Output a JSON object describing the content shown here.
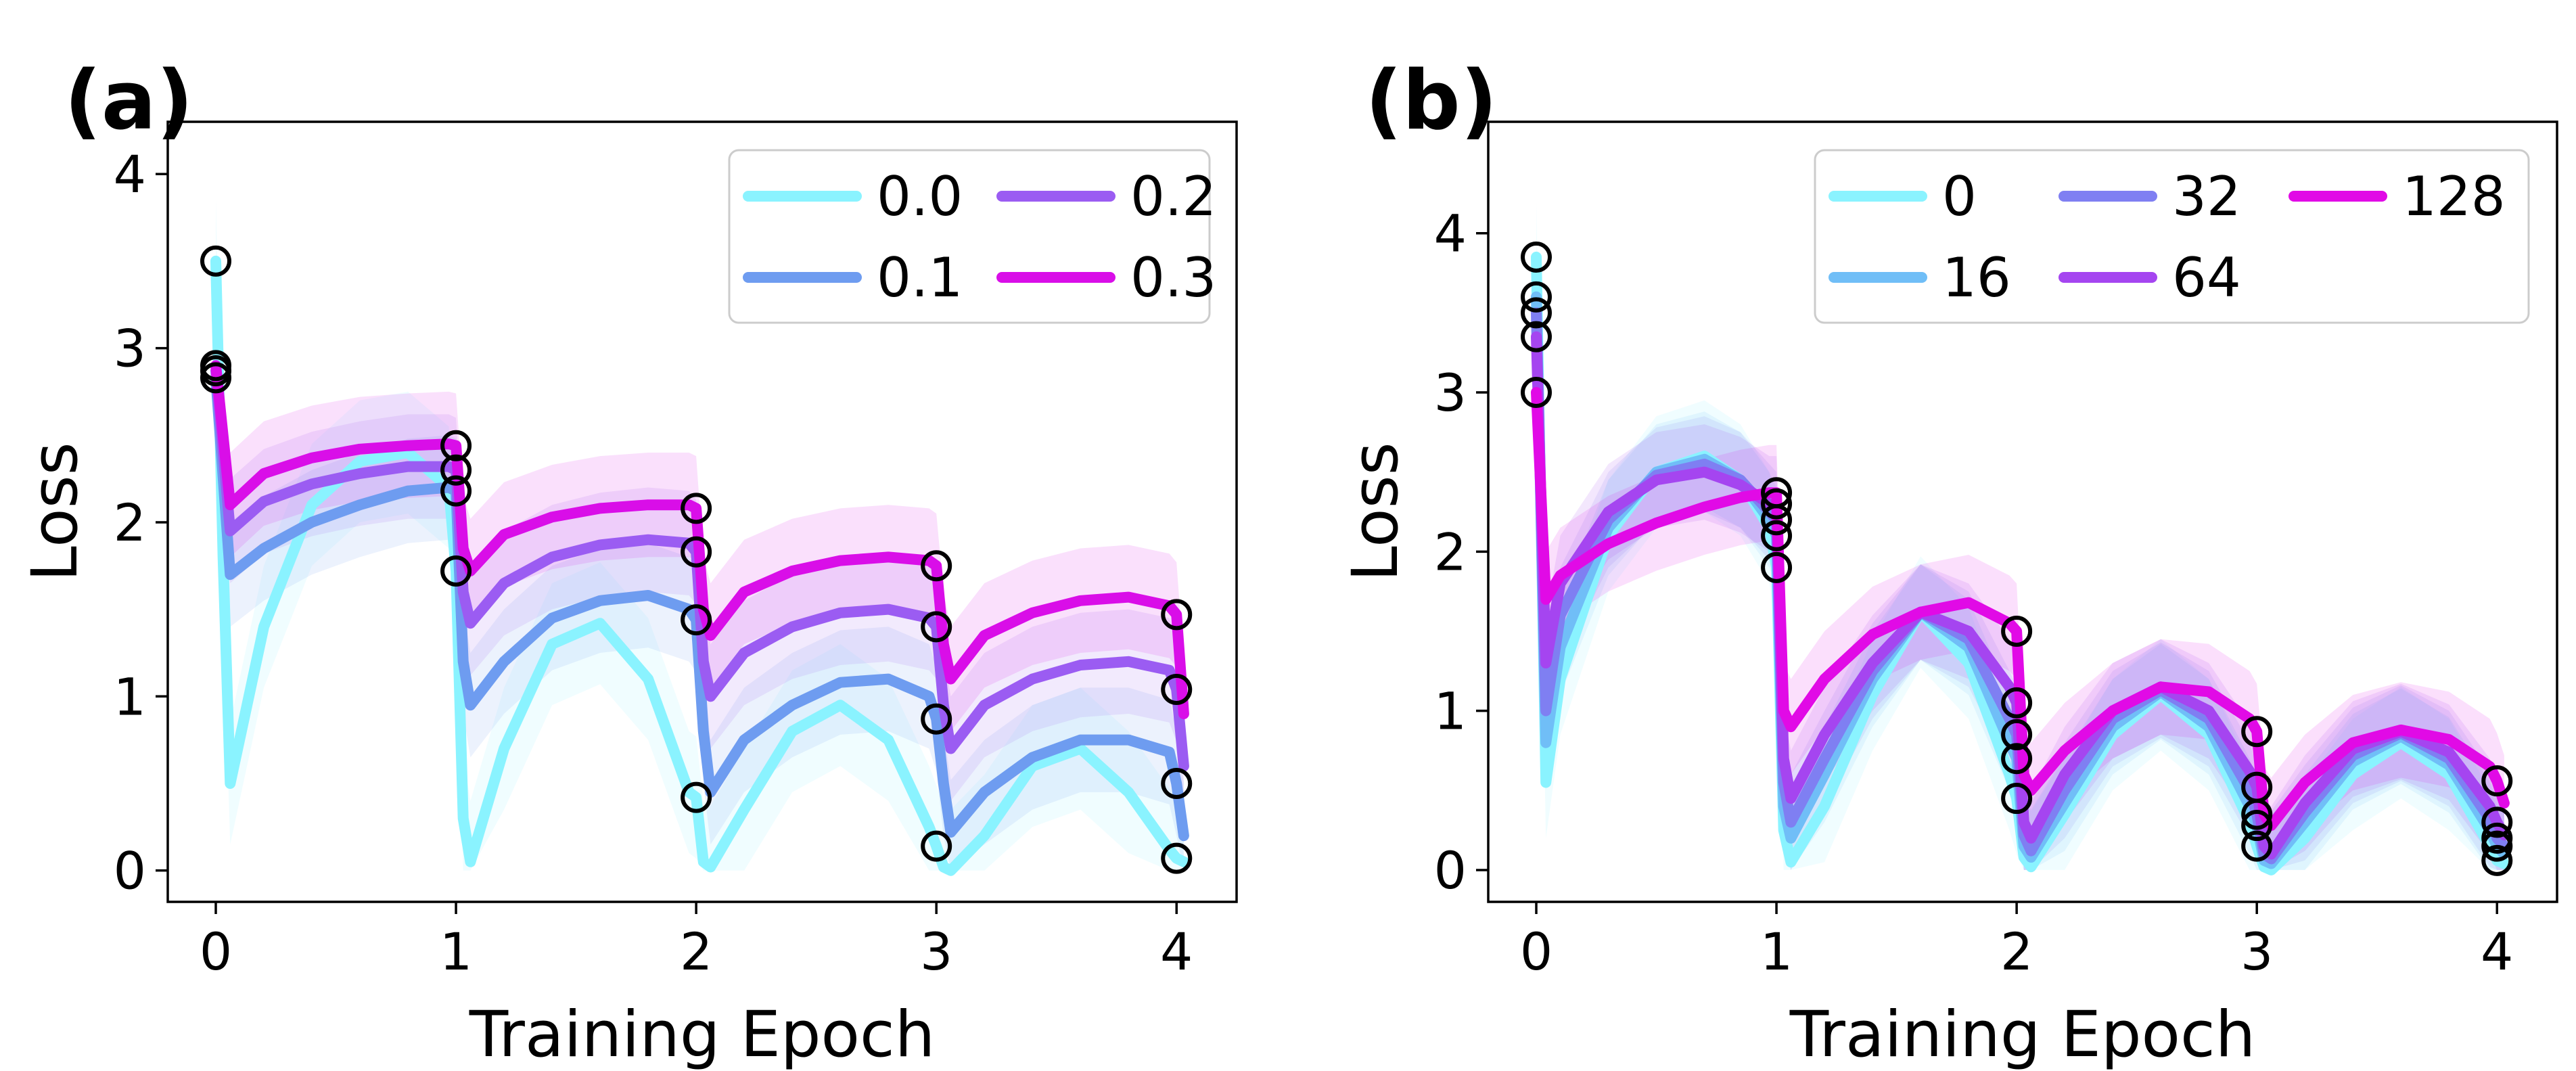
{
  "chart_data": [
    {
      "type": "line",
      "panel_label": "(a)",
      "xlabel": "Training Epoch",
      "ylabel": "Loss",
      "xlim": [
        -0.2,
        4.25
      ],
      "ylim": [
        -0.18,
        4.3
      ],
      "xticks": [
        "0",
        "1",
        "2",
        "3",
        "4"
      ],
      "yticks": [
        "0",
        "1",
        "2",
        "3",
        "4"
      ],
      "grid": false,
      "legend": {
        "placement": "top-right",
        "columns": 2
      },
      "series": [
        {
          "name": "0.0",
          "color": "#8AF3FF",
          "x": [
            0,
            0.03,
            0.06,
            0.2,
            0.4,
            0.6,
            0.8,
            0.97,
            1.0,
            1.03,
            1.06,
            1.2,
            1.4,
            1.6,
            1.8,
            1.97,
            2.0,
            2.03,
            2.06,
            2.2,
            2.4,
            2.6,
            2.8,
            2.97,
            3.0,
            3.03,
            3.06,
            3.2,
            3.4,
            3.6,
            3.8,
            3.97,
            4.0,
            4.03
          ],
          "y": [
            3.5,
            1.8,
            0.5,
            1.4,
            2.1,
            2.35,
            2.4,
            2.2,
            1.72,
            0.3,
            0.05,
            0.7,
            1.3,
            1.42,
            1.1,
            0.45,
            0.42,
            0.05,
            0.02,
            0.35,
            0.8,
            0.95,
            0.75,
            0.25,
            0.14,
            0.02,
            0.0,
            0.2,
            0.6,
            0.7,
            0.45,
            0.12,
            0.07,
            0.05
          ],
          "band": 0.35
        },
        {
          "name": "0.1",
          "color": "#6E9CF0",
          "x": [
            0,
            0.06,
            0.2,
            0.4,
            0.6,
            0.8,
            0.97,
            1.0,
            1.03,
            1.06,
            1.2,
            1.4,
            1.6,
            1.8,
            1.97,
            2.0,
            2.03,
            2.06,
            2.2,
            2.4,
            2.6,
            2.8,
            2.97,
            3.0,
            3.03,
            3.06,
            3.2,
            3.4,
            3.6,
            3.8,
            3.97,
            4.0,
            4.03
          ],
          "y": [
            2.83,
            1.7,
            1.85,
            2.0,
            2.1,
            2.18,
            2.2,
            2.18,
            1.2,
            0.95,
            1.2,
            1.45,
            1.55,
            1.58,
            1.5,
            1.44,
            0.8,
            0.45,
            0.75,
            0.95,
            1.08,
            1.1,
            1.0,
            0.87,
            0.5,
            0.22,
            0.45,
            0.65,
            0.75,
            0.75,
            0.68,
            0.5,
            0.2
          ],
          "band": 0.3
        },
        {
          "name": "0.2",
          "color": "#9B5CF2",
          "x": [
            0,
            0.06,
            0.2,
            0.4,
            0.6,
            0.8,
            0.97,
            1.0,
            1.03,
            1.06,
            1.2,
            1.4,
            1.6,
            1.8,
            1.97,
            2.0,
            2.03,
            2.06,
            2.2,
            2.4,
            2.6,
            2.8,
            2.97,
            3.0,
            3.03,
            3.06,
            3.2,
            3.4,
            3.6,
            3.8,
            3.97,
            4.0,
            4.03
          ],
          "y": [
            2.87,
            1.95,
            2.12,
            2.22,
            2.28,
            2.32,
            2.32,
            2.3,
            1.6,
            1.42,
            1.65,
            1.8,
            1.87,
            1.9,
            1.88,
            1.83,
            1.2,
            1.0,
            1.25,
            1.4,
            1.48,
            1.5,
            1.45,
            1.4,
            0.95,
            0.7,
            0.95,
            1.1,
            1.18,
            1.2,
            1.15,
            1.04,
            0.6
          ],
          "band": 0.3
        },
        {
          "name": "0.3",
          "color": "#D90EE8",
          "x": [
            0,
            0.06,
            0.2,
            0.4,
            0.6,
            0.8,
            0.97,
            1.0,
            1.03,
            1.06,
            1.2,
            1.4,
            1.6,
            1.8,
            1.97,
            2.0,
            2.03,
            2.06,
            2.2,
            2.4,
            2.6,
            2.8,
            2.97,
            3.0,
            3.03,
            3.06,
            3.2,
            3.4,
            3.6,
            3.8,
            3.97,
            4.0,
            4.03
          ],
          "y": [
            2.9,
            2.1,
            2.28,
            2.37,
            2.42,
            2.44,
            2.45,
            2.44,
            1.85,
            1.72,
            1.93,
            2.03,
            2.08,
            2.1,
            2.1,
            2.08,
            1.5,
            1.35,
            1.6,
            1.72,
            1.78,
            1.8,
            1.78,
            1.75,
            1.3,
            1.1,
            1.35,
            1.48,
            1.55,
            1.57,
            1.52,
            1.47,
            0.9
          ],
          "band": 0.3
        }
      ],
      "markers_y": [
        [
          3.5,
          1.72,
          0.42,
          0.14,
          0.07
        ],
        [
          2.83,
          2.18,
          1.44,
          0.87,
          0.5
        ],
        [
          2.87,
          2.3,
          1.83,
          1.4,
          1.04
        ],
        [
          2.9,
          2.44,
          2.08,
          1.75,
          1.47
        ]
      ]
    },
    {
      "type": "line",
      "panel_label": "(b)",
      "xlabel": "Training Epoch",
      "ylabel": "Loss",
      "xlim": [
        -0.2,
        4.25
      ],
      "ylim": [
        -0.2,
        4.7
      ],
      "xticks": [
        "0",
        "1",
        "2",
        "3",
        "4"
      ],
      "yticks": [
        "0",
        "1",
        "2",
        "3",
        "4"
      ],
      "grid": false,
      "legend": {
        "placement": "top-right",
        "columns": 3
      },
      "series": [
        {
          "name": "0",
          "color": "#8AF3FF",
          "x": [
            0,
            0.04,
            0.1,
            0.3,
            0.5,
            0.7,
            0.85,
            0.97,
            1.0,
            1.03,
            1.06,
            1.2,
            1.4,
            1.6,
            1.8,
            1.97,
            2.0,
            2.03,
            2.06,
            2.2,
            2.4,
            2.6,
            2.8,
            2.97,
            3.0,
            3.03,
            3.06,
            3.2,
            3.4,
            3.6,
            3.8,
            3.97,
            4.0,
            4.03
          ],
          "y": [
            3.85,
            0.55,
            1.2,
            2.1,
            2.5,
            2.6,
            2.45,
            2.15,
            1.9,
            0.25,
            0.05,
            0.4,
            1.1,
            1.62,
            1.3,
            0.6,
            0.45,
            0.08,
            0.02,
            0.35,
            0.85,
            1.1,
            0.85,
            0.3,
            0.15,
            0.02,
            0.0,
            0.2,
            0.6,
            0.8,
            0.6,
            0.15,
            0.06,
            0.04
          ],
          "band": 0.35
        },
        {
          "name": "16",
          "color": "#70BEF7",
          "x": [
            0,
            0.04,
            0.1,
            0.3,
            0.5,
            0.7,
            0.85,
            0.97,
            1.0,
            1.03,
            1.06,
            1.2,
            1.4,
            1.6,
            1.8,
            1.97,
            2.0,
            2.03,
            2.06,
            2.2,
            2.4,
            2.6,
            2.8,
            2.97,
            3.0,
            3.03,
            3.06,
            3.2,
            3.4,
            3.6,
            3.8,
            3.97,
            4.0,
            4.03
          ],
          "y": [
            3.6,
            0.8,
            1.4,
            2.15,
            2.5,
            2.58,
            2.45,
            2.2,
            2.1,
            0.4,
            0.2,
            0.6,
            1.2,
            1.62,
            1.4,
            0.8,
            0.7,
            0.15,
            0.08,
            0.42,
            0.9,
            1.12,
            0.9,
            0.4,
            0.28,
            0.06,
            0.04,
            0.3,
            0.68,
            0.84,
            0.66,
            0.25,
            0.15,
            0.1
          ],
          "band": 0.3
        },
        {
          "name": "32",
          "color": "#7F7FF2",
          "x": [
            0,
            0.04,
            0.1,
            0.3,
            0.5,
            0.7,
            0.85,
            0.97,
            1.0,
            1.03,
            1.06,
            1.2,
            1.4,
            1.6,
            1.8,
            1.97,
            2.0,
            2.03,
            2.06,
            2.2,
            2.4,
            2.6,
            2.8,
            2.97,
            3.0,
            3.03,
            3.06,
            3.2,
            3.4,
            3.6,
            3.8,
            3.97,
            4.0,
            4.03
          ],
          "y": [
            3.5,
            1.0,
            1.6,
            2.2,
            2.48,
            2.55,
            2.45,
            2.25,
            2.2,
            0.55,
            0.3,
            0.7,
            1.25,
            1.62,
            1.45,
            0.95,
            0.85,
            0.22,
            0.12,
            0.5,
            0.95,
            1.13,
            0.95,
            0.5,
            0.35,
            0.1,
            0.07,
            0.36,
            0.72,
            0.86,
            0.7,
            0.32,
            0.2,
            0.15
          ],
          "band": 0.3
        },
        {
          "name": "64",
          "color": "#A545F0",
          "x": [
            0,
            0.04,
            0.1,
            0.3,
            0.5,
            0.7,
            0.85,
            0.97,
            1.0,
            1.03,
            1.06,
            1.2,
            1.4,
            1.6,
            1.8,
            1.97,
            2.0,
            2.03,
            2.06,
            2.2,
            2.4,
            2.6,
            2.8,
            2.97,
            3.0,
            3.03,
            3.06,
            3.2,
            3.4,
            3.6,
            3.8,
            3.97,
            4.0,
            4.03
          ],
          "y": [
            3.35,
            1.3,
            1.8,
            2.25,
            2.45,
            2.5,
            2.42,
            2.3,
            2.3,
            0.7,
            0.45,
            0.85,
            1.3,
            1.62,
            1.5,
            1.15,
            1.05,
            0.3,
            0.2,
            0.6,
            1.0,
            1.15,
            1.0,
            0.62,
            0.52,
            0.15,
            0.1,
            0.42,
            0.76,
            0.87,
            0.74,
            0.4,
            0.3,
            0.22
          ],
          "band": 0.3
        },
        {
          "name": "128",
          "color": "#E10AE6",
          "x": [
            0,
            0.04,
            0.1,
            0.3,
            0.5,
            0.7,
            0.85,
            0.97,
            1.0,
            1.03,
            1.06,
            1.2,
            1.4,
            1.6,
            1.8,
            1.97,
            2.0,
            2.03,
            2.06,
            2.2,
            2.4,
            2.6,
            2.8,
            2.97,
            3.0,
            3.03,
            3.06,
            3.2,
            3.4,
            3.6,
            3.8,
            3.97,
            4.0,
            4.03
          ],
          "y": [
            3.0,
            1.7,
            1.85,
            2.05,
            2.18,
            2.28,
            2.34,
            2.37,
            2.37,
            1.0,
            0.9,
            1.2,
            1.48,
            1.62,
            1.68,
            1.55,
            1.5,
            0.6,
            0.5,
            0.75,
            1.0,
            1.15,
            1.12,
            0.95,
            0.87,
            0.35,
            0.28,
            0.55,
            0.8,
            0.88,
            0.82,
            0.65,
            0.56,
            0.42
          ],
          "band": 0.3
        }
      ],
      "markers_y": [
        [
          3.85,
          1.9,
          0.45,
          0.15,
          0.06
        ],
        [
          3.6,
          2.1,
          0.7,
          0.28,
          0.15
        ],
        [
          3.5,
          2.2,
          0.85,
          0.35,
          0.2
        ],
        [
          3.35,
          2.3,
          1.05,
          0.52,
          0.3
        ],
        [
          3.0,
          2.37,
          1.5,
          0.87,
          0.56
        ]
      ]
    }
  ]
}
